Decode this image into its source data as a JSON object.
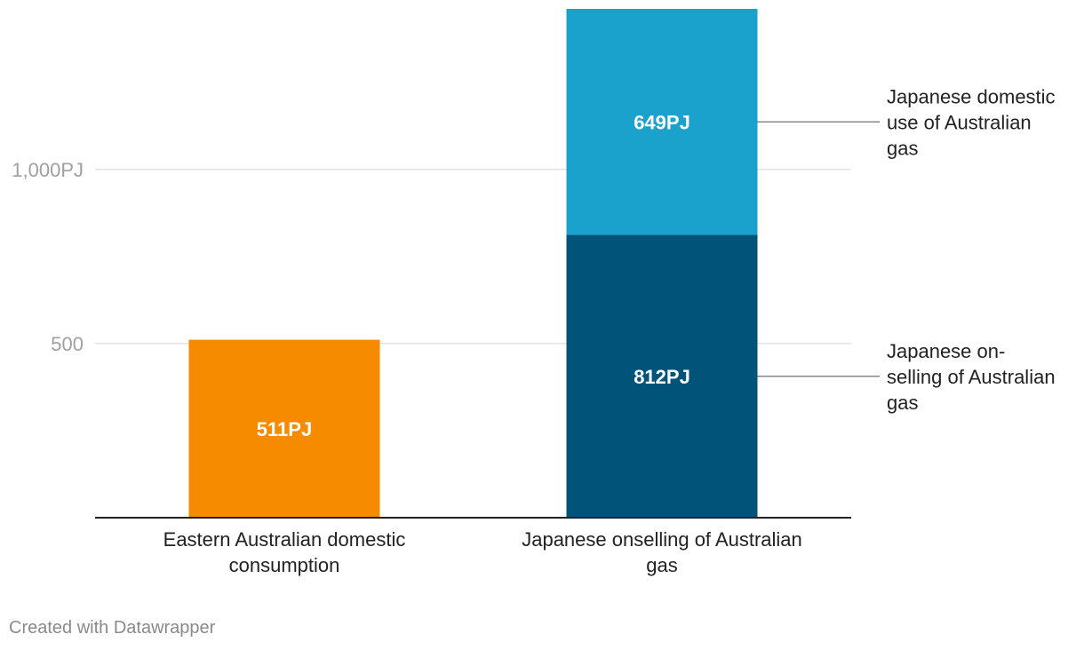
{
  "chart_data": {
    "type": "bar",
    "stacked": true,
    "categories": [
      "Eastern Australian domestic consumption",
      "Japanese onselling of Australian gas"
    ],
    "series": [
      {
        "name": "Eastern Australian domestic consumption",
        "color": "#f78b00",
        "values": [
          511,
          null
        ],
        "labels": [
          "511PJ",
          null
        ]
      },
      {
        "name": "Japanese on-selling of Australian gas",
        "color": "#01537a",
        "values": [
          null,
          812
        ],
        "labels": [
          null,
          "812PJ"
        ]
      },
      {
        "name": "Japanese domestic use of Australian gas",
        "color": "#1aa1cc",
        "values": [
          null,
          649
        ],
        "labels": [
          null,
          "649PJ"
        ]
      }
    ],
    "yticks": [
      {
        "value": 1000,
        "label": "1,000PJ"
      },
      {
        "value": 500,
        "label": "500"
      }
    ],
    "ylim": [
      0,
      1461
    ],
    "grid": true,
    "legend_placement": "right",
    "legend": [
      {
        "series": 2,
        "lines": [
          "Japanese domestic",
          "use of Australian",
          "gas"
        ]
      },
      {
        "series": 1,
        "lines": [
          "Japanese on-",
          "selling of Australian",
          "gas"
        ]
      }
    ],
    "category_label_lines": [
      [
        "Eastern Australian domestic",
        "consumption"
      ],
      [
        "Japanese onselling of Australian",
        "gas"
      ]
    ]
  },
  "footer": "Created with Datawrapper"
}
